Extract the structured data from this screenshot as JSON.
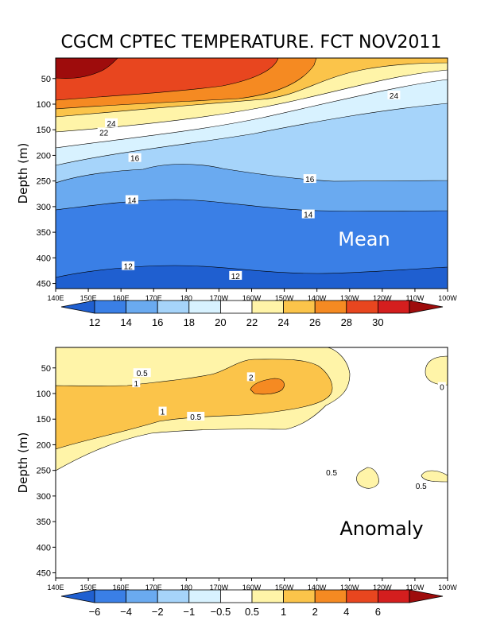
{
  "title": "CGCM CPTEC TEMPERATURE. FCT NOV2011",
  "chart_data": [
    {
      "type": "contour",
      "panel_label": "Mean",
      "ylabel": "Depth (m)",
      "x_ticks": [
        "140E",
        "150E",
        "160E",
        "170E",
        "180",
        "170W",
        "160W",
        "150W",
        "140W",
        "130W",
        "120W",
        "110W",
        "100W"
      ],
      "y_ticks": [
        50,
        100,
        150,
        200,
        250,
        300,
        350,
        400,
        450
      ],
      "ylim": [
        10,
        460
      ],
      "colorbar": {
        "levels": [
          "12",
          "14",
          "16",
          "18",
          "20",
          "22",
          "24",
          "26",
          "28",
          "30"
        ],
        "colors": [
          "#1f5fd0",
          "#3a7fe6",
          "#6aaaf0",
          "#a6d4fa",
          "#d8f2ff",
          "#ffffff",
          "#fff4a8",
          "#fbc44a",
          "#f58a22",
          "#e8461f",
          "#d41e1e",
          "#9e0c0c"
        ]
      },
      "contour_labels": [
        {
          "text": "24",
          "x_deg": 172.6,
          "depth": 83
        },
        {
          "text": "24",
          "x_deg": 28.4,
          "depth": 137
        },
        {
          "text": "22",
          "x_deg": 24.6,
          "depth": 155
        },
        {
          "text": "16",
          "x_deg": 40.4,
          "depth": 205
        },
        {
          "text": "16",
          "x_deg": 129.7,
          "depth": 246
        },
        {
          "text": "14",
          "x_deg": 38.9,
          "depth": 287
        },
        {
          "text": "14",
          "x_deg": 128.9,
          "depth": 315
        },
        {
          "text": "12",
          "x_deg": 37.0,
          "depth": 416
        },
        {
          "text": "12",
          "x_deg": 91.8,
          "depth": 435
        }
      ]
    },
    {
      "type": "contour",
      "panel_label": "Anomaly",
      "ylabel": "Depth (m)",
      "x_ticks": [
        "140E",
        "150E",
        "160E",
        "170E",
        "180",
        "170W",
        "160W",
        "150W",
        "140W",
        "130W",
        "120W",
        "110W",
        "100W"
      ],
      "y_ticks": [
        50,
        100,
        150,
        200,
        250,
        300,
        350,
        400,
        450
      ],
      "ylim": [
        10,
        460
      ],
      "colorbar": {
        "levels": [
          "−6",
          "−4",
          "−2",
          "−1",
          "−0.5",
          "0.5",
          "1",
          "2",
          "4",
          "6"
        ],
        "colors": [
          "#1f5fd0",
          "#3a7fe6",
          "#6aaaf0",
          "#a6d4fa",
          "#d8f2ff",
          "#ffffff",
          "#fff4a8",
          "#fbc44a",
          "#f58a22",
          "#e8461f",
          "#d41e1e",
          "#9e0c0c"
        ]
      },
      "contour_labels": [
        {
          "text": "0.5",
          "x_deg": 44.1,
          "depth": 60
        },
        {
          "text": "1",
          "x_deg": 41.1,
          "depth": 80
        },
        {
          "text": "2",
          "x_deg": 99.7,
          "depth": 68
        },
        {
          "text": "1",
          "x_deg": 54.6,
          "depth": 135
        },
        {
          "text": "0.5",
          "x_deg": 71.5,
          "depth": 145
        },
        {
          "text": "0.5",
          "x_deg": 140.8,
          "depth": 254
        },
        {
          "text": "0.5",
          "x_deg": 186.5,
          "depth": 280
        },
        {
          "text": "0",
          "x_deg": 197.1,
          "depth": 87
        }
      ]
    }
  ]
}
